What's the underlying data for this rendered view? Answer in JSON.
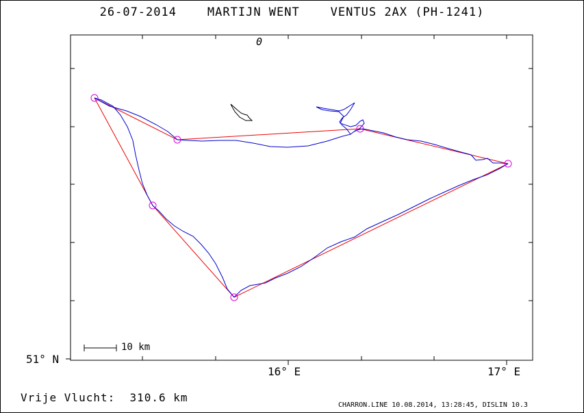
{
  "title": "26-07-2014    MARTIJN WENT    VENTUS 2AX (PH-1241)",
  "axes": {
    "lat_label": "51° N",
    "lon_labels": [
      "16° E",
      "17° E"
    ]
  },
  "scale_bar_label": "10 km",
  "zero_marker": "0",
  "distance_label": "Vrije Vlucht:  310.6 km",
  "footer": "CHARRON.LINE 10.08.2014, 13:28:45, DISLIN 10.3",
  "colors": {
    "track": "#0000cc",
    "task": "#ee0000",
    "turnpoint": "#dd00dd",
    "axis": "#000000"
  },
  "turnpoint_count": 6,
  "icons": [
    "turnpoint-circle-icon"
  ]
}
